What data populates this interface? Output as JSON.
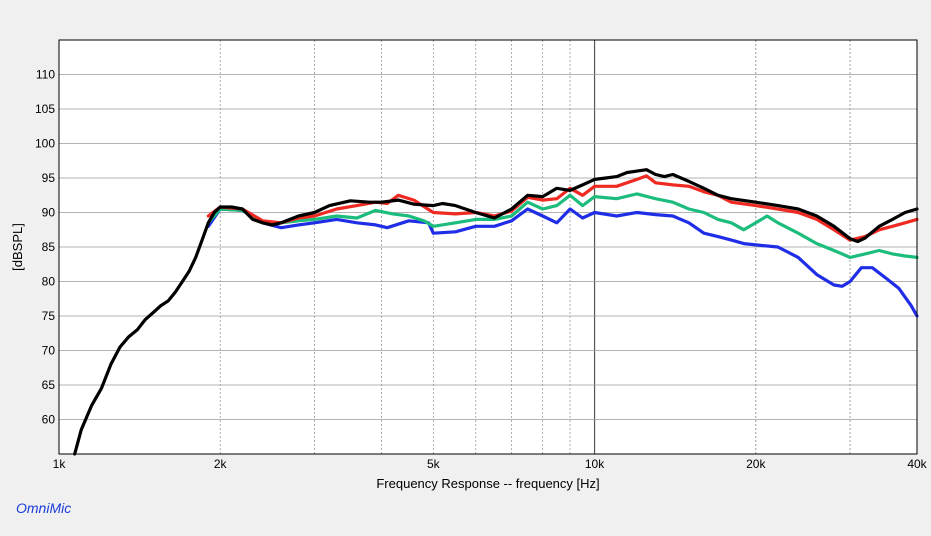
{
  "brand": "OmniMic",
  "chart_data": {
    "type": "line",
    "xlabel": "Frequency Response -- frequency [Hz]",
    "ylabel": "[dBSPL]",
    "xscale": "log",
    "xlim": [
      1000,
      40000
    ],
    "ylim": [
      55,
      115
    ],
    "grid": true,
    "x_tick_labels": [
      {
        "value": 1000,
        "label": "1k"
      },
      {
        "value": 2000,
        "label": "2k"
      },
      {
        "value": 5000,
        "label": "5k"
      },
      {
        "value": 10000,
        "label": "10k"
      },
      {
        "value": 20000,
        "label": "20k"
      },
      {
        "value": 40000,
        "label": "40k"
      }
    ],
    "y_ticks": [
      60,
      65,
      70,
      75,
      80,
      85,
      90,
      95,
      100,
      105,
      110
    ],
    "colors": {
      "black": "#000000",
      "red": "#ee2a22",
      "green": "#1cbd7c",
      "blue": "#1f2ee6",
      "grid": "#9a9a9a",
      "plot_bg": "#ffffff",
      "page_bg": "#f0f0f0"
    },
    "series": [
      {
        "color_key": "blue",
        "points": [
          [
            1900,
            88
          ],
          [
            2000,
            90.5
          ],
          [
            2200,
            90.3
          ],
          [
            2400,
            88.5
          ],
          [
            2600,
            87.8
          ],
          [
            2800,
            88.2
          ],
          [
            3000,
            88.5
          ],
          [
            3300,
            89
          ],
          [
            3600,
            88.5
          ],
          [
            3900,
            88.2
          ],
          [
            4100,
            87.8
          ],
          [
            4500,
            88.8
          ],
          [
            4900,
            88.5
          ],
          [
            5000,
            87
          ],
          [
            5500,
            87.2
          ],
          [
            6000,
            88
          ],
          [
            6500,
            88
          ],
          [
            7000,
            88.8
          ],
          [
            7500,
            90.5
          ],
          [
            8000,
            89.5
          ],
          [
            8500,
            88.5
          ],
          [
            9000,
            90.5
          ],
          [
            9500,
            89.2
          ],
          [
            10000,
            90
          ],
          [
            11000,
            89.5
          ],
          [
            12000,
            90
          ],
          [
            13000,
            89.7
          ],
          [
            14000,
            89.5
          ],
          [
            15000,
            88.5
          ],
          [
            16000,
            87
          ],
          [
            17000,
            86.5
          ],
          [
            18000,
            86
          ],
          [
            19000,
            85.5
          ],
          [
            20000,
            85.3
          ],
          [
            22000,
            85
          ],
          [
            24000,
            83.5
          ],
          [
            26000,
            81
          ],
          [
            28000,
            79.5
          ],
          [
            29000,
            79.3
          ],
          [
            30000,
            80
          ],
          [
            31500,
            82
          ],
          [
            33000,
            82
          ],
          [
            35000,
            80.5
          ],
          [
            37000,
            79
          ],
          [
            39000,
            76.5
          ],
          [
            40000,
            75
          ]
        ]
      },
      {
        "color_key": "green",
        "points": [
          [
            1900,
            88.5
          ],
          [
            2000,
            90.5
          ],
          [
            2200,
            90.3
          ],
          [
            2400,
            88.5
          ],
          [
            2600,
            88.5
          ],
          [
            2800,
            88.8
          ],
          [
            3000,
            89
          ],
          [
            3300,
            89.5
          ],
          [
            3600,
            89.2
          ],
          [
            3900,
            90.3
          ],
          [
            4200,
            89.8
          ],
          [
            4500,
            89.5
          ],
          [
            4800,
            88.8
          ],
          [
            5000,
            88
          ],
          [
            5500,
            88.5
          ],
          [
            6000,
            89
          ],
          [
            6500,
            89
          ],
          [
            7000,
            89.5
          ],
          [
            7500,
            91.5
          ],
          [
            8000,
            90.5
          ],
          [
            8500,
            91
          ],
          [
            9000,
            92.5
          ],
          [
            9500,
            91
          ],
          [
            10000,
            92.3
          ],
          [
            11000,
            92
          ],
          [
            12000,
            92.7
          ],
          [
            13000,
            92
          ],
          [
            14000,
            91.5
          ],
          [
            15000,
            90.5
          ],
          [
            16000,
            90
          ],
          [
            17000,
            89
          ],
          [
            18000,
            88.5
          ],
          [
            19000,
            87.5
          ],
          [
            20000,
            88.5
          ],
          [
            21000,
            89.5
          ],
          [
            22000,
            88.5
          ],
          [
            24000,
            87
          ],
          [
            26000,
            85.5
          ],
          [
            28000,
            84.5
          ],
          [
            30000,
            83.5
          ],
          [
            32000,
            84
          ],
          [
            34000,
            84.5
          ],
          [
            36000,
            84
          ],
          [
            38000,
            83.7
          ],
          [
            40000,
            83.5
          ]
        ]
      },
      {
        "color_key": "red",
        "points": [
          [
            1900,
            89.5
          ],
          [
            2000,
            90.8
          ],
          [
            2200,
            90.5
          ],
          [
            2400,
            88.8
          ],
          [
            2600,
            88.5
          ],
          [
            2800,
            89.2
          ],
          [
            3000,
            89.5
          ],
          [
            3300,
            90.5
          ],
          [
            3600,
            91
          ],
          [
            3900,
            91.5
          ],
          [
            4100,
            91.3
          ],
          [
            4300,
            92.5
          ],
          [
            4600,
            91.8
          ],
          [
            5000,
            90
          ],
          [
            5500,
            89.8
          ],
          [
            6000,
            90
          ],
          [
            6500,
            89.5
          ],
          [
            7000,
            90.2
          ],
          [
            7500,
            92.2
          ],
          [
            8000,
            91.8
          ],
          [
            8500,
            92
          ],
          [
            9000,
            93.5
          ],
          [
            9500,
            92.5
          ],
          [
            10000,
            93.8
          ],
          [
            11000,
            93.8
          ],
          [
            12000,
            94.8
          ],
          [
            12500,
            95.3
          ],
          [
            13000,
            94.3
          ],
          [
            14000,
            94
          ],
          [
            15000,
            93.8
          ],
          [
            16000,
            93
          ],
          [
            17000,
            92.5
          ],
          [
            18000,
            91.5
          ],
          [
            20000,
            91
          ],
          [
            22000,
            90.5
          ],
          [
            24000,
            90
          ],
          [
            26000,
            89
          ],
          [
            28000,
            87.5
          ],
          [
            30000,
            86
          ],
          [
            32000,
            86.5
          ],
          [
            34000,
            87.5
          ],
          [
            36000,
            88
          ],
          [
            38000,
            88.5
          ],
          [
            40000,
            89
          ]
        ]
      },
      {
        "color_key": "black",
        "points": [
          [
            1070,
            55
          ],
          [
            1100,
            58.5
          ],
          [
            1150,
            62
          ],
          [
            1200,
            64.5
          ],
          [
            1250,
            68
          ],
          [
            1300,
            70.5
          ],
          [
            1350,
            72
          ],
          [
            1400,
            73
          ],
          [
            1450,
            74.5
          ],
          [
            1500,
            75.5
          ],
          [
            1550,
            76.5
          ],
          [
            1600,
            77.2
          ],
          [
            1650,
            78.5
          ],
          [
            1700,
            80
          ],
          [
            1750,
            81.5
          ],
          [
            1800,
            83.5
          ],
          [
            1850,
            86
          ],
          [
            1900,
            88.5
          ],
          [
            1950,
            90
          ],
          [
            2000,
            90.8
          ],
          [
            2100,
            90.8
          ],
          [
            2200,
            90.5
          ],
          [
            2300,
            89
          ],
          [
            2400,
            88.5
          ],
          [
            2500,
            88.2
          ],
          [
            2600,
            88.5
          ],
          [
            2800,
            89.5
          ],
          [
            3000,
            90
          ],
          [
            3200,
            91
          ],
          [
            3500,
            91.7
          ],
          [
            3800,
            91.5
          ],
          [
            4000,
            91.5
          ],
          [
            4300,
            91.8
          ],
          [
            4600,
            91.2
          ],
          [
            5000,
            91
          ],
          [
            5200,
            91.3
          ],
          [
            5500,
            91
          ],
          [
            6000,
            90
          ],
          [
            6500,
            89.2
          ],
          [
            7000,
            90.5
          ],
          [
            7500,
            92.5
          ],
          [
            8000,
            92.3
          ],
          [
            8500,
            93.5
          ],
          [
            9000,
            93.2
          ],
          [
            9500,
            94
          ],
          [
            10000,
            94.8
          ],
          [
            10500,
            95
          ],
          [
            11000,
            95.2
          ],
          [
            11500,
            95.8
          ],
          [
            12000,
            96
          ],
          [
            12500,
            96.2
          ],
          [
            13000,
            95.5
          ],
          [
            13500,
            95.2
          ],
          [
            14000,
            95.5
          ],
          [
            15000,
            94.5
          ],
          [
            16000,
            93.5
          ],
          [
            17000,
            92.5
          ],
          [
            18000,
            92
          ],
          [
            20000,
            91.5
          ],
          [
            22000,
            91
          ],
          [
            24000,
            90.5
          ],
          [
            26000,
            89.5
          ],
          [
            28000,
            88
          ],
          [
            30000,
            86.2
          ],
          [
            31000,
            85.8
          ],
          [
            32000,
            86.3
          ],
          [
            34000,
            88
          ],
          [
            36000,
            89
          ],
          [
            38000,
            90
          ],
          [
            40000,
            90.5
          ]
        ]
      }
    ]
  }
}
